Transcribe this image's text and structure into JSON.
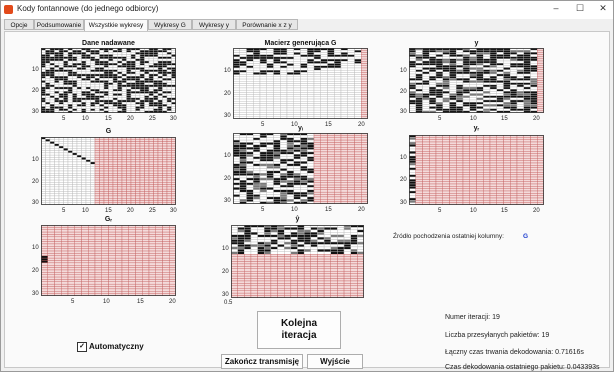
{
  "window": {
    "title": "Kody fontannowe (do jednego odbiorcy)",
    "minimize": "–",
    "maximize": "☐",
    "close": "✕"
  },
  "tabs": [
    {
      "label": "Opcje",
      "active": false
    },
    {
      "label": "Podsumowanie",
      "active": false
    },
    {
      "label": "Wszystkie wykresy",
      "active": true
    },
    {
      "label": "Wykresy G",
      "active": false
    },
    {
      "label": "Wykresy y",
      "active": false
    },
    {
      "label": "Porównanie x z y",
      "active": false
    }
  ],
  "plots": {
    "dane": {
      "title": "Dane nadawane",
      "xticks": [
        "5",
        "10",
        "15",
        "20",
        "25",
        "30"
      ],
      "yticks": [
        "10",
        "20",
        "30"
      ]
    },
    "macierz": {
      "title": "Macierz generująca G",
      "xticks": [
        "5",
        "10",
        "15",
        "20"
      ],
      "yticks": [
        "10",
        "20",
        "30"
      ]
    },
    "y": {
      "title": "y",
      "xticks": [
        "5",
        "10",
        "15",
        "20"
      ],
      "yticks": [
        "10",
        "20",
        "30"
      ]
    },
    "G": {
      "title": "G",
      "xticks": [
        "5",
        "10",
        "15",
        "20",
        "25",
        "30"
      ],
      "yticks": [
        "10",
        "20",
        "30"
      ]
    },
    "yi": {
      "title": "yᵢ",
      "xticks": [
        "5",
        "10",
        "15",
        "20"
      ],
      "yticks": [
        "10",
        "20",
        "30"
      ]
    },
    "yr": {
      "title": "yᵣ",
      "xticks": [
        "5",
        "10",
        "15",
        "20"
      ],
      "yticks": [
        "10",
        "20",
        "30"
      ]
    },
    "Gr": {
      "title": "Gᵣ",
      "xticks": [
        "5",
        "10",
        "15",
        "20"
      ],
      "yticks": [
        "10",
        "20",
        "30"
      ]
    },
    "ybar": {
      "title": "ŷ",
      "xticks": [
        "5",
        "10",
        "15",
        "20"
      ],
      "yticks": [
        "10",
        "20",
        "30"
      ],
      "xmarker": "0.5"
    }
  },
  "source": {
    "label": "Źródło pochodzenia ostatniej kolumny:",
    "value": "G"
  },
  "buttons": {
    "next": "Kolejna iteracja",
    "end": "Zakończ transmisję",
    "exit": "Wyjście"
  },
  "auto": {
    "label": "Automatyczny",
    "checked": true,
    "mark": "✓"
  },
  "stats": {
    "iteration": "Numer iteracji: 19",
    "packets": "Liczba przesyłanych pakietów: 19",
    "total_time": "Łączny czas trwania dekodowania: 0.71616s",
    "last_time": "Czas dekodowania ostatniego pakietu: 0.043393s"
  },
  "colors": {
    "black": "#111111",
    "white": "#ffffff",
    "gray": "#7a7a7a",
    "empty": "#f4dada",
    "grid_light": "#b8b8b8",
    "grid_pink": "#c46060",
    "source_value": "#1d3ecf"
  }
}
